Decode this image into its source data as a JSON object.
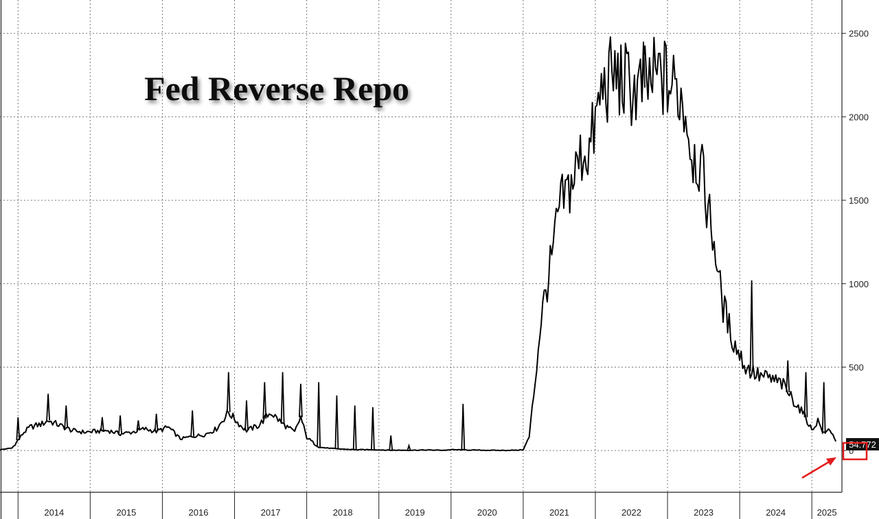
{
  "chart_data": {
    "type": "line",
    "title": "Fed Reverse Repo",
    "y_ticks": [
      "0",
      "500",
      "1000",
      "1500",
      "2000",
      "2500"
    ],
    "x_ticks": [
      "2014",
      "2015",
      "2016",
      "2017",
      "2018",
      "2019",
      "2020",
      "2021",
      "2022",
      "2023",
      "2024",
      "2025"
    ],
    "last_value_label": "54.772",
    "ylim": [
      -250,
      2700
    ],
    "xlim": [
      "2013-10",
      "2025-06"
    ],
    "grid": true,
    "series": [
      {
        "x": [
          "2013-10",
          "2013-12",
          "2014-02",
          "2014-03",
          "2014-05",
          "2014-06",
          "2014-08",
          "2014-10",
          "2014-12",
          "2015-02",
          "2015-04",
          "2015-06",
          "2015-08",
          "2015-10",
          "2015-12",
          "2016-02",
          "2016-04",
          "2016-06",
          "2016-08",
          "2016-10",
          "2016-12",
          "2017-02",
          "2017-03",
          "2017-05",
          "2017-07",
          "2017-09",
          "2017-11",
          "2017-12",
          "2018-01",
          "2018-03",
          "2018-06",
          "2018-09",
          "2018-12",
          "2019-03",
          "2019-06",
          "2019-09",
          "2019-12",
          "2020-01",
          "2020-03",
          "2020-04",
          "2020-06",
          "2020-09",
          "2020-12",
          "2021-01",
          "2021-02",
          "2021-03",
          "2021-04",
          "2021-05",
          "2021-06",
          "2021-07",
          "2021-09",
          "2021-10",
          "2021-11",
          "2021-12",
          "2022-01",
          "2022-02",
          "2022-03",
          "2022-04",
          "2022-06",
          "2022-08",
          "2022-10",
          "2022-12",
          "2023-01",
          "2023-03",
          "2023-04",
          "2023-05",
          "2023-06",
          "2023-07",
          "2023-09",
          "2023-10",
          "2023-12",
          "2024-02",
          "2024-04",
          "2024-06",
          "2024-08",
          "2024-09",
          "2024-10",
          "2024-12",
          "2025-01",
          "2025-02",
          "2025-03",
          "2025-04",
          "2025-05"
        ],
        "y": [
          5,
          15,
          110,
          140,
          160,
          180,
          150,
          120,
          110,
          115,
          120,
          100,
          110,
          130,
          115,
          140,
          70,
          85,
          95,
          130,
          230,
          150,
          120,
          150,
          230,
          160,
          110,
          200,
          80,
          20,
          10,
          5,
          5,
          2,
          2,
          3,
          2,
          5,
          4,
          3,
          2,
          1,
          2,
          5,
          80,
          420,
          800,
          1000,
          1200,
          1450,
          1600,
          1700,
          1800,
          1800,
          1950,
          2150,
          2200,
          2250,
          2200,
          2150,
          2200,
          2250,
          2200,
          2150,
          2050,
          1800,
          1750,
          1600,
          1200,
          900,
          650,
          500,
          450,
          430,
          400,
          350,
          300,
          200,
          120,
          180,
          100,
          130,
          55
        ]
      }
    ],
    "spikes": [
      {
        "x": "2014-01",
        "y": 200
      },
      {
        "x": "2014-06",
        "y": 340
      },
      {
        "x": "2014-09",
        "y": 270
      },
      {
        "x": "2015-03",
        "y": 200
      },
      {
        "x": "2015-06",
        "y": 210
      },
      {
        "x": "2015-09",
        "y": 180
      },
      {
        "x": "2015-12",
        "y": 220
      },
      {
        "x": "2016-06",
        "y": 240
      },
      {
        "x": "2016-12",
        "y": 470
      },
      {
        "x": "2017-03",
        "y": 300
      },
      {
        "x": "2017-06",
        "y": 410
      },
      {
        "x": "2017-09",
        "y": 470
      },
      {
        "x": "2017-12",
        "y": 400
      },
      {
        "x": "2018-03",
        "y": 410
      },
      {
        "x": "2018-06",
        "y": 330
      },
      {
        "x": "2018-09",
        "y": 270
      },
      {
        "x": "2018-12",
        "y": 260
      },
      {
        "x": "2019-03",
        "y": 90
      },
      {
        "x": "2019-06",
        "y": 30
      },
      {
        "x": "2020-03",
        "y": 280
      },
      {
        "x": "2022-09",
        "y": 2450
      },
      {
        "x": "2024-03",
        "y": 1020
      },
      {
        "x": "2024-09",
        "y": 540
      },
      {
        "x": "2024-12",
        "y": 470
      },
      {
        "x": "2025-03",
        "y": 410
      }
    ]
  }
}
